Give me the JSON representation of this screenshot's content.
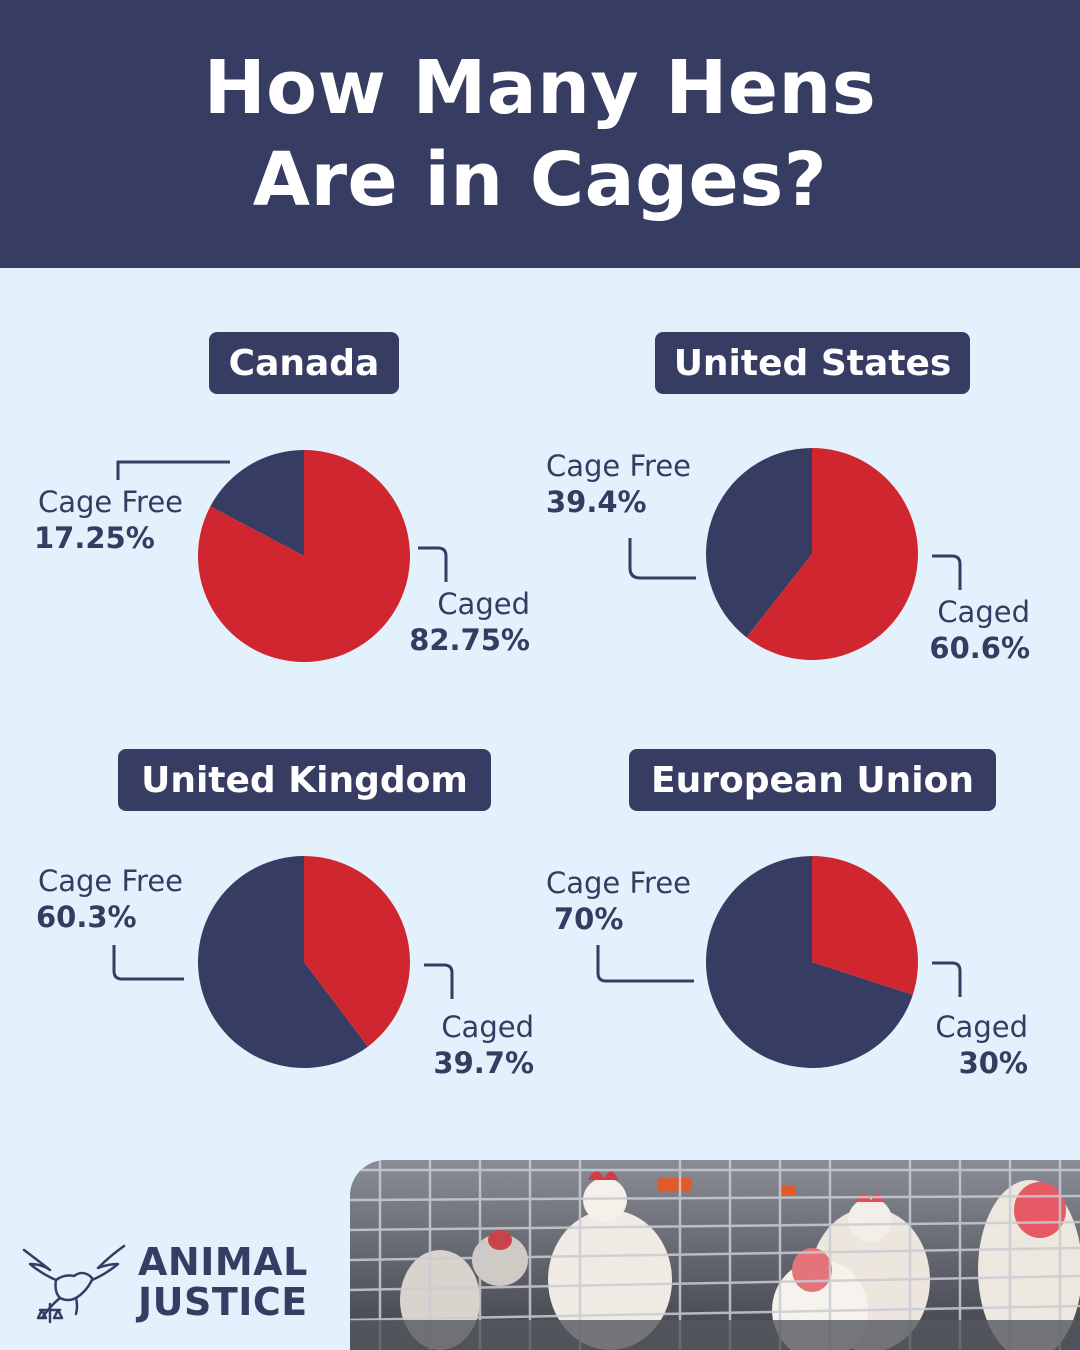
{
  "header": {
    "title_line1": "How Many Hens",
    "title_line2": "Are in Cages?"
  },
  "colors": {
    "caged": "#d0262f",
    "cage_free": "#373c62",
    "background": "#e2f1fc",
    "header": "#373c62"
  },
  "chart_data": [
    {
      "type": "pie",
      "title": "Canada",
      "slices": [
        {
          "label": "Caged",
          "value": 82.75,
          "value_text": "82.75%"
        },
        {
          "label": "Cage Free",
          "value": 17.25,
          "value_text": "17.25%"
        }
      ]
    },
    {
      "type": "pie",
      "title": "United States",
      "slices": [
        {
          "label": "Caged",
          "value": 60.6,
          "value_text": "60.6%"
        },
        {
          "label": "Cage Free",
          "value": 39.4,
          "value_text": "39.4%"
        }
      ]
    },
    {
      "type": "pie",
      "title": "United Kingdom",
      "slices": [
        {
          "label": "Caged",
          "value": 39.7,
          "value_text": "39.7%"
        },
        {
          "label": "Cage Free",
          "value": 60.3,
          "value_text": "60.3%"
        }
      ]
    },
    {
      "type": "pie",
      "title": "European Union",
      "slices": [
        {
          "label": "Caged",
          "value": 30,
          "value_text": "30%"
        },
        {
          "label": "Cage Free",
          "value": 70,
          "value_text": "70%"
        }
      ]
    }
  ],
  "logo": {
    "line1": "ANIMAL",
    "line2": "JUSTICE",
    "icon": "dove-scales-icon"
  },
  "photo": {
    "icon": "caged-hens-photo"
  }
}
